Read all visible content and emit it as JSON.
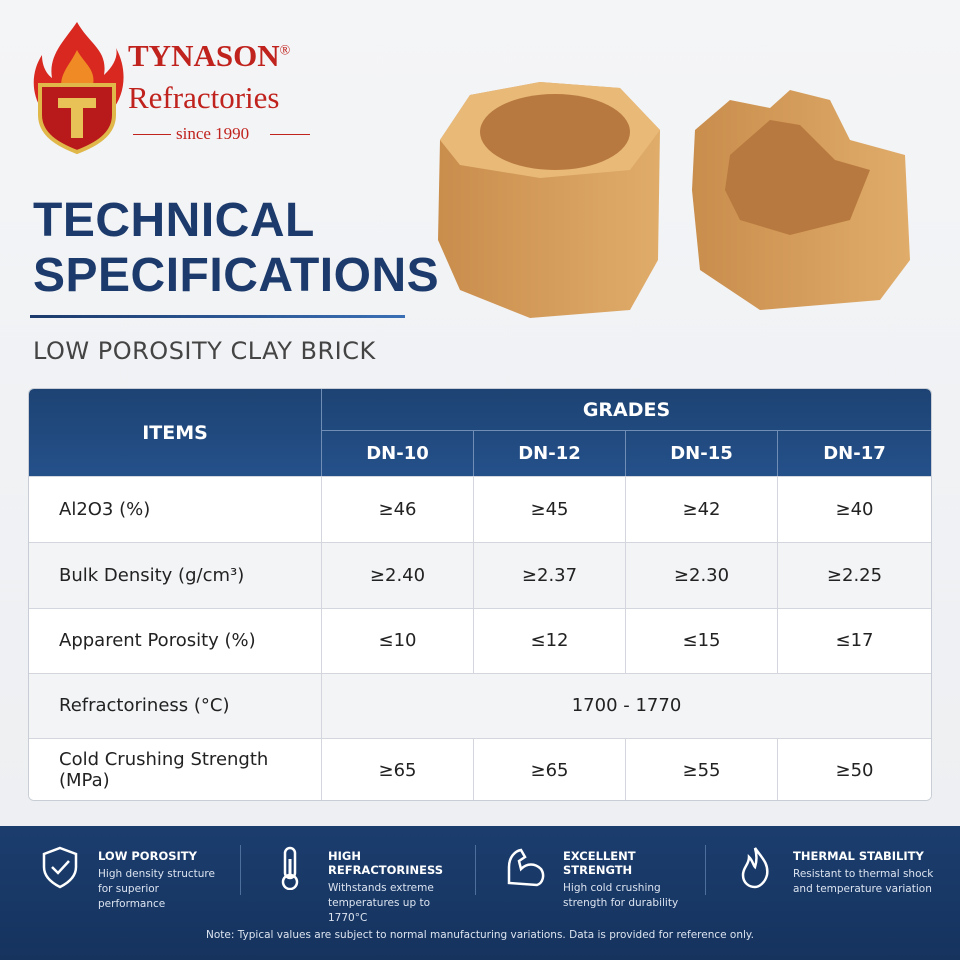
{
  "brand": {
    "name": "TYNASON",
    "mark": "®",
    "subtitle": "Refractories",
    "since": "since 1990"
  },
  "header": {
    "title_line1": "TECHNICAL",
    "title_line2": "SPECIFICATIONS",
    "product": "LOW POROSITY CLAY BRICK"
  },
  "table": {
    "items_header": "ITEMS",
    "grades_header": "GRADES",
    "grades": [
      "DN-10",
      "DN-12",
      "DN-15",
      "DN-17"
    ],
    "rows": [
      {
        "item": "Al2O3 (%)",
        "values": [
          "≥46",
          "≥45",
          "≥42",
          "≥40"
        ]
      },
      {
        "item": "Bulk Density (g/cm³)",
        "values": [
          "≥2.40",
          "≥2.37",
          "≥2.30",
          "≥2.25"
        ]
      },
      {
        "item": "Apparent Porosity (%)",
        "values": [
          "≤10",
          "≤12",
          "≤15",
          "≤17"
        ]
      },
      {
        "item": "Refractoriness (°C)",
        "span": "1700 - 1770"
      },
      {
        "item": "Cold Crushing Strength (MPa)",
        "values": [
          "≥65",
          "≥65",
          "≥55",
          "≥50"
        ]
      }
    ]
  },
  "features": [
    {
      "title": "LOW POROSITY",
      "text": "High density structure for superior performance"
    },
    {
      "title": "HIGH REFRACTORINESS",
      "text": "Withstands extreme temperatures up to 1770°C"
    },
    {
      "title": "EXCELLENT STRENGTH",
      "text": "High cold crushing strength for durability"
    },
    {
      "title": "THERMAL STABILITY",
      "text": "Resistant to thermal shock and temperature variation"
    }
  ],
  "note": "Note: Typical values are subject to normal manufacturing variations. Data is provided for reference only."
}
